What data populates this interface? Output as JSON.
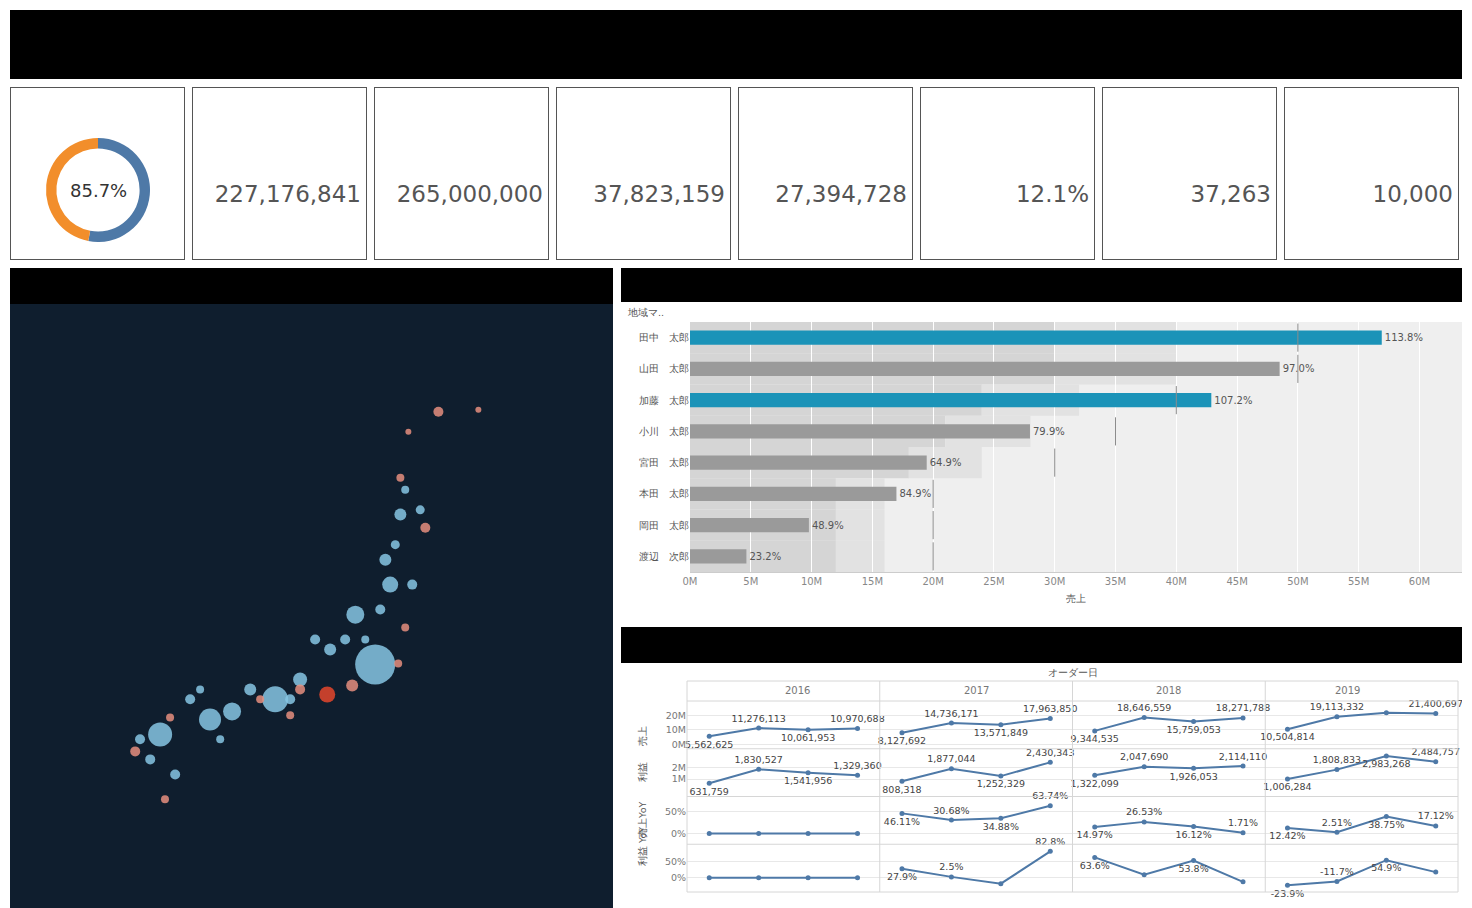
{
  "kpis": [
    "227,176,841",
    "265,000,000",
    "37,823,159",
    "27,394,728",
    "12.1%",
    "37,263",
    "10,000"
  ],
  "chart_data": [
    {
      "type": "pie",
      "annotation": "85.7%",
      "values": [
        53,
        47
      ],
      "colors": [
        "#4e79a7",
        "#f28e2b"
      ]
    },
    {
      "type": "scatter",
      "tick_labels": false,
      "grid": false,
      "xlim": [
        124.6,
        149.5
      ],
      "ylim": [
        28.1,
        47.0
      ],
      "xticks": [],
      "yticks": [],
      "x": [
        139.68,
        135.55,
        132.86,
        130.8,
        133.77,
        136.58,
        138.86,
        140.3,
        140.1,
        141.21,
        140.72,
        141.54,
        140.51,
        140.92,
        131.42,
        130.39,
        132.04,
        134.52,
        137.82,
        137.2,
        138.44,
        136.17,
        133.28,
        132.45,
        129.97,
        139.27,
        139.89,
        142.29,
        143.94,
        141.05,
        140.72,
        141.75,
        140.92,
        140.63,
        138.73,
        136.58,
        136.17,
        129.77,
        131.21,
        134.93,
        131.0,
        137.7
      ],
      "y": [
        35.72,
        34.63,
        34.0,
        33.53,
        34.25,
        35.25,
        37.28,
        38.22,
        39.0,
        38.22,
        40.41,
        40.56,
        39.47,
        41.19,
        32.28,
        32.75,
        34.63,
        34.94,
        36.19,
        36.5,
        36.5,
        34.63,
        33.38,
        34.94,
        33.38,
        36.5,
        37.44,
        43.63,
        43.69,
        43.0,
        41.56,
        40.0,
        36.88,
        35.75,
        35.06,
        34.94,
        34.13,
        33.0,
        34.06,
        34.63,
        31.5,
        34.78
      ],
      "sizes": [
        40,
        26,
        22,
        24,
        18,
        14,
        18,
        16,
        12,
        10,
        12,
        9,
        9,
        8,
        10,
        10,
        10,
        12,
        12,
        10,
        10,
        10,
        8,
        8,
        10,
        8,
        10,
        10,
        6,
        6,
        8,
        10,
        8,
        8,
        12,
        10,
        8,
        10,
        8,
        8,
        8,
        16
      ],
      "colors": [
        "#86c5e3",
        "#86c5e3",
        "#86c5e3",
        "#86c5e3",
        "#86c5e3",
        "#86c5e3",
        "#86c5e3",
        "#86c5e3",
        "#86c5e3",
        "#86c5e3",
        "#86c5e3",
        "#86c5e3",
        "#86c5e3",
        "#86c5e3",
        "#86c5e3",
        "#86c5e3",
        "#86c5e3",
        "#86c5e3",
        "#86c5e3",
        "#86c5e3",
        "#86c5e3",
        "#86c5e3",
        "#86c5e3",
        "#86c5e3",
        "#86c5e3",
        "#86c5e3",
        "#86c5e3",
        "#e58e7e",
        "#e58e7e",
        "#e58e7e",
        "#e58e7e",
        "#e58e7e",
        "#e58e7e",
        "#e58e7e",
        "#e58e7e",
        "#e58e7e",
        "#e58e7e",
        "#e58e7e",
        "#e58e7e",
        "#e58e7e",
        "#e58e7e",
        "#e4462c"
      ]
    },
    {
      "type": "bar",
      "orientation": "horizontal",
      "grid": true,
      "data_labels": true,
      "y_header": "地域マ..",
      "xlabel": "売上",
      "categories": [
        "田中　太郎",
        "山田　太郎",
        "加藤　太郎",
        "小川　太郎",
        "宮田　太郎",
        "本田　太郎",
        "岡田　太郎",
        "渡辺　次郎"
      ],
      "series": [
        {
          "name": "売上",
          "values": [
            56900000,
            48500000,
            42880000,
            27965000,
            19470000,
            16980000,
            9780000,
            4640000
          ]
        }
      ],
      "colors": [
        "#1b93b8",
        "#9a9a9a",
        "#1b93b8",
        "#9a9a9a",
        "#9a9a9a",
        "#9a9a9a",
        "#9a9a9a",
        "#9a9a9a"
      ],
      "bar_labels": [
        "113.8%",
        "97.0%",
        "107.2%",
        "79.9%",
        "64.9%",
        "84.9%",
        "48.9%",
        "23.2%"
      ],
      "targets": [
        50000000,
        50000000,
        40000000,
        35000000,
        30000000,
        20000000,
        20000000,
        20000000
      ],
      "bands": [
        [
          30000000,
          40000000
        ],
        [
          30000000,
          40000000
        ],
        [
          24000000,
          32000000
        ],
        [
          21000000,
          28000000
        ],
        [
          18000000,
          24000000
        ],
        [
          12000000,
          16000000
        ],
        [
          12000000,
          16000000
        ],
        [
          12000000,
          16000000
        ]
      ],
      "xlim": [
        0,
        63500000
      ],
      "xticks": [
        {
          "value": 0,
          "label": "0M"
        },
        {
          "value": 5000000,
          "label": "5M"
        },
        {
          "value": 10000000,
          "label": "10M"
        },
        {
          "value": 15000000,
          "label": "15M"
        },
        {
          "value": 20000000,
          "label": "20M"
        },
        {
          "value": 25000000,
          "label": "25M"
        },
        {
          "value": 30000000,
          "label": "30M"
        },
        {
          "value": 35000000,
          "label": "35M"
        },
        {
          "value": 40000000,
          "label": "40M"
        },
        {
          "value": 45000000,
          "label": "45M"
        },
        {
          "value": 50000000,
          "label": "50M"
        },
        {
          "value": 55000000,
          "label": "55M"
        },
        {
          "value": 60000000,
          "label": "60M"
        }
      ]
    },
    {
      "type": "line",
      "x_header": "オーダー日",
      "color": "#4e79a7",
      "data_labels": true,
      "tick_labels": "y",
      "grid": true,
      "categories": [
        null,
        null,
        null,
        null
      ],
      "rows": [
        {
          "label": "売上",
          "ylim": [
            -3000000,
            30000000
          ],
          "yticks": [
            {
              "value": 0,
              "label": "0M"
            },
            {
              "value": 10000000,
              "label": "10M"
            },
            {
              "value": 20000000,
              "label": "20M"
            }
          ],
          "series": [
            {
              "name": "2016",
              "values": [
                5562625,
                11276113,
                10061953,
                10970688
              ],
              "value_labels": [
                "5,562,625",
                "11,276,113",
                "10,061,953",
                "10,970,688"
              ]
            },
            {
              "name": "2017",
              "values": [
                8127692,
                14736171,
                13571849,
                17963850
              ],
              "value_labels": [
                "8,127,692",
                "14,736,171",
                "13,571,849",
                "17,963,850"
              ]
            },
            {
              "name": "2018",
              "values": [
                9344535,
                18646559,
                15759053,
                18271788
              ],
              "value_labels": [
                "9,344,535",
                "18,646,559",
                "15,759,053",
                "18,271,788"
              ]
            },
            {
              "name": "2019",
              "values": [
                10504814,
                19113332,
                21865122,
                21400697
              ],
              "value_labels": [
                "10,504,814",
                "19,113,332",
                null,
                "21,400,697"
              ]
            }
          ]
        },
        {
          "label": "利益",
          "ylim": [
            -500000,
            3600000
          ],
          "yticks": [
            {
              "value": 1000000,
              "label": "1M"
            },
            {
              "value": 2000000,
              "label": "2M"
            }
          ],
          "series": [
            {
              "name": "2016",
              "values": [
                631759,
                1830527,
                1541956,
                1329360
              ],
              "value_labels": [
                "631,759",
                "1,830,527",
                "1,541,956",
                "1,329,360"
              ]
            },
            {
              "name": "2017",
              "values": [
                808318,
                1877044,
                1252329,
                2430343
              ],
              "value_labels": [
                "808,318",
                "1,877,044",
                "1,252,329",
                "2,430,343"
              ]
            },
            {
              "name": "2018",
              "values": [
                1322099,
                2047690,
                1926053,
                2114110
              ],
              "value_labels": [
                "1,322,099",
                "2,047,690",
                "1,926,053",
                "2,114,110"
              ]
            },
            {
              "name": "2019",
              "values": [
                1006284,
                1808833,
                2983268,
                2484757
              ],
              "value_labels": [
                "1,006,284",
                "1,808,833",
                "2,983,268",
                "2,484,757"
              ]
            }
          ]
        },
        {
          "label": "売上YoY",
          "ylim": [
            -25,
            85
          ],
          "yticks": [
            {
              "value": 0,
              "label": "0%"
            },
            {
              "value": 50,
              "label": "50%"
            }
          ],
          "series": [
            {
              "name": "2016",
              "values": [
                0,
                0,
                0,
                0
              ],
              "value_labels": [
                null,
                null,
                null,
                null
              ]
            },
            {
              "name": "2017",
              "values": [
                46.11,
                30.68,
                34.88,
                63.74
              ],
              "value_labels": [
                "46.11%",
                "30.68%",
                "34.88%",
                "63.74%"
              ]
            },
            {
              "name": "2018",
              "values": [
                14.97,
                26.53,
                16.12,
                1.71
              ],
              "value_labels": [
                "14.97%",
                "26.53%",
                "16.12%",
                "1.71%"
              ]
            },
            {
              "name": "2019",
              "values": [
                12.42,
                2.51,
                38.75,
                17.12
              ],
              "value_labels": [
                "12.42%",
                "2.51%",
                "38.75%",
                "17.12%"
              ]
            }
          ]
        },
        {
          "label": "利益 YoY",
          "ylim": [
            -45,
            105
          ],
          "yticks": [
            {
              "value": 0,
              "label": "0%"
            },
            {
              "value": 50,
              "label": "50%"
            }
          ],
          "series": [
            {
              "name": "2016",
              "values": [
                0,
                0,
                0,
                0
              ],
              "value_labels": [
                null,
                null,
                null,
                null
              ]
            },
            {
              "name": "2017",
              "values": [
                27.9,
                2.5,
                -18.8,
                82.8
              ],
              "value_labels": [
                "27.9%",
                "2.5%",
                null,
                "82.8%"
              ]
            },
            {
              "name": "2018",
              "values": [
                63.6,
                9.1,
                53.8,
                -13.0
              ],
              "value_labels": [
                "63.6%",
                null,
                "53.8%",
                null
              ]
            },
            {
              "name": "2019",
              "values": [
                -23.9,
                -11.7,
                54.9,
                17.5
              ],
              "value_labels": [
                "-23.9%",
                "-11.7%",
                "54.9%",
                null
              ]
            }
          ]
        }
      ]
    }
  ]
}
